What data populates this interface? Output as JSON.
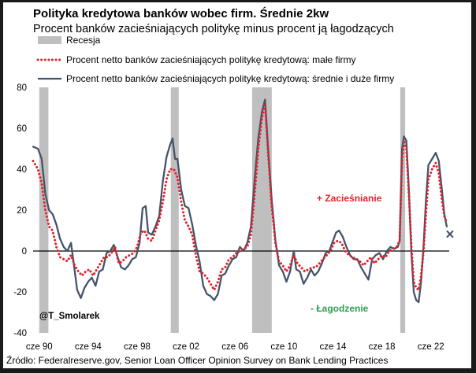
{
  "chart_data": {
    "type": "line",
    "title": "Polityka kredytowa banków wobec firm. Średnie 2kw",
    "subtitle": "Procent banków zacieśniających politykę minus procent ją łagodzących",
    "xlabel": "",
    "ylabel": "",
    "x_range": [
      1990.0,
      2024.0
    ],
    "ylim": [
      -40,
      80
    ],
    "y_ticks": [
      80,
      60,
      40,
      20,
      0,
      -20,
      -40
    ],
    "x_ticks": [
      {
        "label": "cze 90",
        "x": 1990.5
      },
      {
        "label": "cze 94",
        "x": 1994.5
      },
      {
        "label": "cze 98",
        "x": 1998.5
      },
      {
        "label": "cze 02",
        "x": 2002.5
      },
      {
        "label": "cze 06",
        "x": 2006.5
      },
      {
        "label": "cze 10",
        "x": 2010.5
      },
      {
        "label": "cze 14",
        "x": 2014.5
      },
      {
        "label": "cze 18",
        "x": 2018.5
      },
      {
        "label": "cze 22",
        "x": 2022.5
      }
    ],
    "recessions": [
      {
        "start": 1990.5,
        "end": 1991.25
      },
      {
        "start": 2001.25,
        "end": 2001.9
      },
      {
        "start": 2007.9,
        "end": 2009.5
      },
      {
        "start": 2020.0,
        "end": 2020.4
      }
    ],
    "grid": false,
    "legend_position": "top-left",
    "legend": [
      {
        "key": "recession",
        "label": "Recesja"
      },
      {
        "key": "small",
        "label": "Procent netto banków zacieśniających politykę kredytową: małe firmy"
      },
      {
        "key": "large",
        "label": "Procent netto banków zacieśniających politykę kredytową: średnie i duże firmy"
      }
    ],
    "series": [
      {
        "key": "large",
        "name": "Procent netto banków zacieśniających politykę kredytową: średnie i duże firmy",
        "color": "#44546a",
        "style": "solid",
        "points": [
          [
            1990.0,
            51
          ],
          [
            1990.4,
            50
          ],
          [
            1990.7,
            45
          ],
          [
            1991.0,
            28
          ],
          [
            1991.3,
            20
          ],
          [
            1991.6,
            18
          ],
          [
            1991.9,
            13
          ],
          [
            1992.2,
            6
          ],
          [
            1992.5,
            2
          ],
          [
            1992.8,
            0
          ],
          [
            1993.1,
            4
          ],
          [
            1993.3,
            -5
          ],
          [
            1993.6,
            -19
          ],
          [
            1993.9,
            -23
          ],
          [
            1994.2,
            -18
          ],
          [
            1994.5,
            -15
          ],
          [
            1994.8,
            -13
          ],
          [
            1995.1,
            -17
          ],
          [
            1995.4,
            -10
          ],
          [
            1995.7,
            -9
          ],
          [
            1996.0,
            -1
          ],
          [
            1996.3,
            0
          ],
          [
            1996.6,
            3
          ],
          [
            1996.9,
            -3
          ],
          [
            1997.2,
            -8
          ],
          [
            1997.5,
            -9
          ],
          [
            1997.8,
            -7
          ],
          [
            1998.1,
            -4
          ],
          [
            1998.4,
            -3
          ],
          [
            1998.7,
            4
          ],
          [
            1998.95,
            21
          ],
          [
            1999.2,
            22
          ],
          [
            1999.4,
            9
          ],
          [
            1999.7,
            8
          ],
          [
            2000.0,
            12
          ],
          [
            2000.3,
            17
          ],
          [
            2000.6,
            34
          ],
          [
            2000.9,
            46
          ],
          [
            2001.2,
            52
          ],
          [
            2001.4,
            55
          ],
          [
            2001.6,
            45
          ],
          [
            2001.8,
            45
          ],
          [
            2002.1,
            30
          ],
          [
            2002.4,
            22
          ],
          [
            2002.7,
            21
          ],
          [
            2003.0,
            13
          ],
          [
            2003.3,
            3
          ],
          [
            2003.6,
            -5
          ],
          [
            2003.9,
            -17
          ],
          [
            2004.2,
            -21
          ],
          [
            2004.5,
            -22
          ],
          [
            2004.8,
            -24
          ],
          [
            2005.1,
            -21
          ],
          [
            2005.4,
            -12
          ],
          [
            2005.7,
            -11
          ],
          [
            2006.0,
            -7
          ],
          [
            2006.3,
            -4
          ],
          [
            2006.6,
            -3
          ],
          [
            2006.9,
            2
          ],
          [
            2007.2,
            0
          ],
          [
            2007.5,
            4
          ],
          [
            2007.8,
            12
          ],
          [
            2008.1,
            35
          ],
          [
            2008.4,
            55
          ],
          [
            2008.7,
            68
          ],
          [
            2008.95,
            74
          ],
          [
            2009.2,
            50
          ],
          [
            2009.5,
            25
          ],
          [
            2009.8,
            5
          ],
          [
            2010.1,
            -7
          ],
          [
            2010.4,
            -10
          ],
          [
            2010.7,
            -15
          ],
          [
            2011.0,
            -10
          ],
          [
            2011.3,
            0
          ],
          [
            2011.5,
            -9
          ],
          [
            2011.8,
            -10
          ],
          [
            2012.1,
            -16
          ],
          [
            2012.4,
            -13
          ],
          [
            2012.7,
            -9
          ],
          [
            2013.0,
            -12
          ],
          [
            2013.3,
            -10
          ],
          [
            2013.6,
            -6
          ],
          [
            2013.9,
            -1
          ],
          [
            2014.2,
            0
          ],
          [
            2014.5,
            5
          ],
          [
            2014.75,
            9
          ],
          [
            2015.0,
            10
          ],
          [
            2015.3,
            7
          ],
          [
            2015.6,
            2
          ],
          [
            2015.9,
            -2
          ],
          [
            2016.2,
            -4
          ],
          [
            2016.5,
            -4
          ],
          [
            2016.8,
            -8
          ],
          [
            2017.1,
            -11
          ],
          [
            2017.4,
            -14
          ],
          [
            2017.7,
            -4
          ],
          [
            2018.0,
            -2
          ],
          [
            2018.3,
            -1
          ],
          [
            2018.6,
            -4
          ],
          [
            2018.9,
            0
          ],
          [
            2019.2,
            2
          ],
          [
            2019.5,
            1
          ],
          [
            2019.8,
            2
          ],
          [
            2019.95,
            5
          ],
          [
            2020.15,
            50
          ],
          [
            2020.3,
            56
          ],
          [
            2020.5,
            54
          ],
          [
            2020.7,
            30
          ],
          [
            2020.9,
            0
          ],
          [
            2021.1,
            -20
          ],
          [
            2021.3,
            -24
          ],
          [
            2021.5,
            -25
          ],
          [
            2021.7,
            -15
          ],
          [
            2021.9,
            2
          ],
          [
            2022.1,
            25
          ],
          [
            2022.3,
            42
          ],
          [
            2022.6,
            45
          ],
          [
            2022.9,
            48
          ],
          [
            2023.15,
            44
          ],
          [
            2023.4,
            30
          ],
          [
            2023.6,
            18
          ],
          [
            2023.8,
            12
          ]
        ]
      },
      {
        "key": "small",
        "name": "Procent netto banków zacieśniających politykę kredytową: małe firmy",
        "color": "#e0232b",
        "style": "dotted",
        "points": [
          [
            1990.0,
            44
          ],
          [
            1990.4,
            40
          ],
          [
            1990.7,
            33
          ],
          [
            1991.0,
            20
          ],
          [
            1991.3,
            12
          ],
          [
            1991.6,
            10
          ],
          [
            1991.9,
            2
          ],
          [
            1992.2,
            -3
          ],
          [
            1992.5,
            -4
          ],
          [
            1992.8,
            -5
          ],
          [
            1993.1,
            -2
          ],
          [
            1993.4,
            -7
          ],
          [
            1993.7,
            -10
          ],
          [
            1994.0,
            -12
          ],
          [
            1994.3,
            -10
          ],
          [
            1994.6,
            -9
          ],
          [
            1994.9,
            -12
          ],
          [
            1995.2,
            -9
          ],
          [
            1995.5,
            -6
          ],
          [
            1995.8,
            -3
          ],
          [
            1996.1,
            -3
          ],
          [
            1996.4,
            -1
          ],
          [
            1996.7,
            2
          ],
          [
            1997.0,
            -6
          ],
          [
            1997.3,
            -5
          ],
          [
            1997.6,
            -3
          ],
          [
            1997.9,
            -2
          ],
          [
            1998.2,
            -1
          ],
          [
            1998.5,
            2
          ],
          [
            1998.8,
            9
          ],
          [
            1999.1,
            10
          ],
          [
            1999.4,
            6
          ],
          [
            1999.7,
            5
          ],
          [
            2000.0,
            10
          ],
          [
            2000.3,
            15
          ],
          [
            2000.6,
            24
          ],
          [
            2000.9,
            35
          ],
          [
            2001.2,
            40
          ],
          [
            2001.5,
            40
          ],
          [
            2001.8,
            36
          ],
          [
            2002.1,
            24
          ],
          [
            2002.4,
            15
          ],
          [
            2002.7,
            12
          ],
          [
            2003.0,
            8
          ],
          [
            2003.3,
            -2
          ],
          [
            2003.6,
            -10
          ],
          [
            2003.9,
            -11
          ],
          [
            2004.2,
            -13
          ],
          [
            2004.5,
            -16
          ],
          [
            2004.8,
            -19
          ],
          [
            2005.1,
            -15
          ],
          [
            2005.4,
            -9
          ],
          [
            2005.7,
            -8
          ],
          [
            2006.0,
            -4
          ],
          [
            2006.3,
            -3
          ],
          [
            2006.6,
            -1
          ],
          [
            2006.9,
            0
          ],
          [
            2007.2,
            1
          ],
          [
            2007.5,
            2
          ],
          [
            2007.8,
            8
          ],
          [
            2008.1,
            28
          ],
          [
            2008.4,
            50
          ],
          [
            2008.7,
            65
          ],
          [
            2008.95,
            72
          ],
          [
            2009.2,
            48
          ],
          [
            2009.5,
            22
          ],
          [
            2009.8,
            4
          ],
          [
            2010.1,
            -5
          ],
          [
            2010.4,
            -7
          ],
          [
            2010.7,
            -10
          ],
          [
            2011.0,
            -7
          ],
          [
            2011.3,
            -2
          ],
          [
            2011.6,
            -6
          ],
          [
            2011.9,
            -8
          ],
          [
            2012.2,
            -10
          ],
          [
            2012.5,
            -9
          ],
          [
            2012.8,
            -8
          ],
          [
            2013.1,
            -8
          ],
          [
            2013.4,
            -6
          ],
          [
            2013.7,
            -4
          ],
          [
            2014.0,
            -2
          ],
          [
            2014.3,
            0
          ],
          [
            2014.6,
            4
          ],
          [
            2014.9,
            5
          ],
          [
            2015.2,
            4
          ],
          [
            2015.5,
            0
          ],
          [
            2015.8,
            -2
          ],
          [
            2016.1,
            -3
          ],
          [
            2016.4,
            -4
          ],
          [
            2016.7,
            -5
          ],
          [
            2017.0,
            -7
          ],
          [
            2017.3,
            -5
          ],
          [
            2017.6,
            -3
          ],
          [
            2017.9,
            -6
          ],
          [
            2018.2,
            -4
          ],
          [
            2018.5,
            -2
          ],
          [
            2018.8,
            -3
          ],
          [
            2019.1,
            0
          ],
          [
            2019.4,
            1
          ],
          [
            2019.7,
            2
          ],
          [
            2019.95,
            5
          ],
          [
            2020.15,
            45
          ],
          [
            2020.3,
            54
          ],
          [
            2020.5,
            50
          ],
          [
            2020.7,
            28
          ],
          [
            2020.9,
            3
          ],
          [
            2021.1,
            -15
          ],
          [
            2021.3,
            -18
          ],
          [
            2021.5,
            -19
          ],
          [
            2021.7,
            -12
          ],
          [
            2021.9,
            0
          ],
          [
            2022.1,
            18
          ],
          [
            2022.3,
            35
          ],
          [
            2022.6,
            40
          ],
          [
            2022.9,
            43
          ],
          [
            2023.15,
            38
          ],
          [
            2023.4,
            25
          ],
          [
            2023.6,
            17
          ],
          [
            2023.8,
            14
          ]
        ]
      }
    ],
    "latest_marker": {
      "x": 2023.8,
      "y": 8,
      "symbol": "×"
    },
    "annotations": [
      {
        "key": "tightening",
        "text": "+ Zacieśnianie",
        "color": "#e0232b"
      },
      {
        "key": "easing",
        "text": "- Łagodzenie",
        "color": "#2e9e4f"
      },
      {
        "key": "handle",
        "text": "@T_Smolarek",
        "color": "#000000"
      }
    ]
  },
  "source": "Źródło: Federalreserve.gov, Senior Loan Officer Opinion Survey on Bank Lending Practices"
}
